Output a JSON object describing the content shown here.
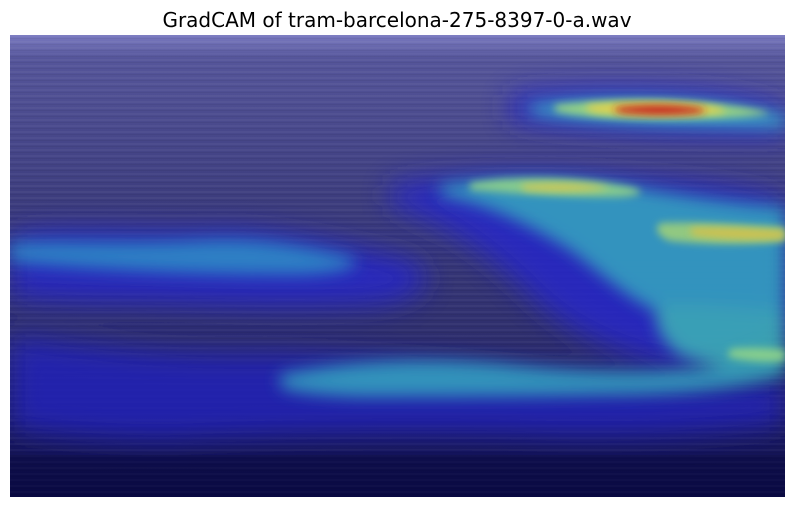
{
  "figure": {
    "title": "GradCAM of tram-barcelona-275-8397-0-a.wav"
  },
  "colors": {
    "background": "#ffffff",
    "base_dark": "#0b0b46",
    "base_mid": "#3a3a80",
    "base_top": "#6e6eb6",
    "cam_blue": "#2a2ad8",
    "cam_cyan": "#38b8c8",
    "cam_green": "#8ed88a",
    "cam_yellow": "#e6d24a",
    "cam_red": "#c62020"
  }
}
